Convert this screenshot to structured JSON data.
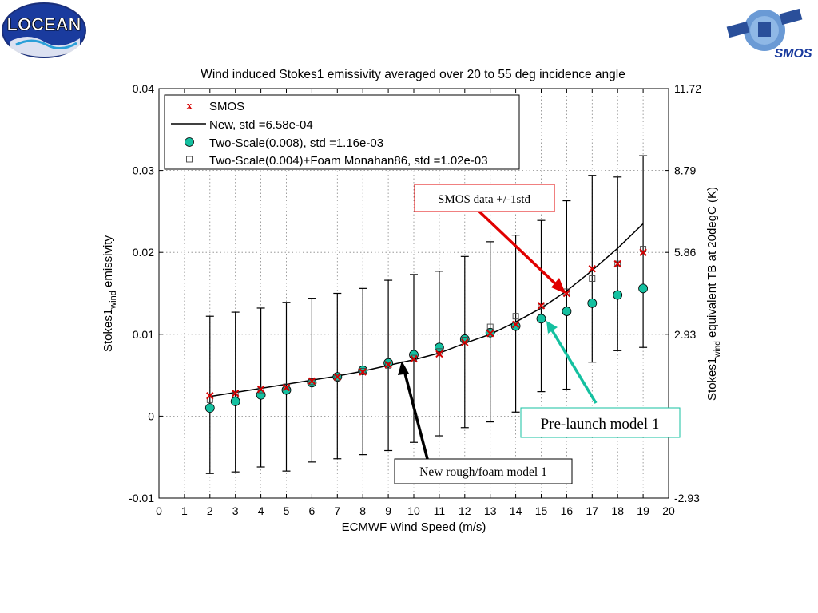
{
  "logos": {
    "left_text": "LOCEAN",
    "right_text": "SMOS"
  },
  "chart_data": {
    "type": "scatter",
    "title": "Wind induced Stokes1 emissivity averaged over 20 to 55 deg incidence angle",
    "xlabel": "ECMWF Wind Speed (m/s)",
    "ylabel": "Stokes1 emissivity",
    "ylabel_sub": "wind",
    "ylabel_base": "Stokes1",
    "ylabel_rest": " emissivity",
    "y2label_base": "Stokes1",
    "y2label_sub": "wind",
    "y2label_rest": " equivalent TB at 20degC (K)",
    "xlim": [
      0,
      20
    ],
    "ylim": [
      -0.01,
      0.04
    ],
    "x_ticks": [
      "0",
      "1",
      "2",
      "3",
      "4",
      "5",
      "6",
      "7",
      "8",
      "9",
      "10",
      "11",
      "12",
      "13",
      "14",
      "15",
      "16",
      "17",
      "18",
      "19",
      "20"
    ],
    "y_ticks": [
      "-0.01",
      "0",
      "0.01",
      "0.02",
      "0.03",
      "0.04"
    ],
    "y2_ticks": [
      "-2.93",
      "0",
      "2.93",
      "5.86",
      "8.79",
      "11.72"
    ],
    "grid": true,
    "legend_position": "top-left",
    "series": [
      {
        "name": "SMOS",
        "marker": "x",
        "color": "#d40000",
        "x": [
          2,
          3,
          4,
          5,
          6,
          7,
          8,
          9,
          10,
          11,
          12,
          13,
          14,
          15,
          16,
          17,
          18,
          19
        ],
        "y": [
          0.0025,
          0.0028,
          0.0033,
          0.0035,
          0.0043,
          0.0048,
          0.0054,
          0.0063,
          0.007,
          0.0076,
          0.009,
          0.0101,
          0.0112,
          0.0135,
          0.015,
          0.018,
          0.0186,
          0.02
        ],
        "err_low": [
          -0.007,
          -0.0068,
          -0.0062,
          -0.0067,
          -0.0056,
          -0.0052,
          -0.0047,
          -0.0042,
          -0.0032,
          -0.0024,
          -0.0014,
          -0.0007,
          0.0005,
          0.003,
          0.0033,
          0.0066,
          0.008,
          0.0084
        ],
        "err_high": [
          0.0122,
          0.0127,
          0.0132,
          0.0139,
          0.0144,
          0.015,
          0.0156,
          0.0166,
          0.0173,
          0.0177,
          0.0195,
          0.0213,
          0.0221,
          0.0239,
          0.0263,
          0.0294,
          0.0292,
          0.0318
        ]
      },
      {
        "name": "New, std =6.58e-04",
        "style": "line",
        "color": "#000000",
        "x": [
          2,
          3,
          4,
          5,
          6,
          7,
          8,
          9,
          10,
          11,
          12,
          13,
          14,
          15,
          16,
          17,
          18,
          19
        ],
        "y": [
          0.0024,
          0.0029,
          0.0034,
          0.0039,
          0.0044,
          0.0049,
          0.0055,
          0.0062,
          0.0069,
          0.0077,
          0.0089,
          0.01,
          0.0115,
          0.0132,
          0.0153,
          0.0178,
          0.0205,
          0.0235
        ]
      },
      {
        "name": "Two-Scale(0.008), std =1.16e-03",
        "marker": "circle",
        "color": "#14c0a0",
        "x": [
          2,
          3,
          4,
          5,
          6,
          7,
          8,
          9,
          10,
          11,
          12,
          13,
          14,
          15,
          16,
          17,
          18,
          19
        ],
        "y": [
          0.001,
          0.0018,
          0.0026,
          0.0032,
          0.0041,
          0.0048,
          0.0056,
          0.0065,
          0.0075,
          0.0084,
          0.0094,
          0.0102,
          0.011,
          0.0119,
          0.0128,
          0.0138,
          0.0148,
          0.0156
        ]
      },
      {
        "name": "Two-Scale(0.004)+Foam Monahan86, std =1.02e-03",
        "marker": "square",
        "color": "#444444",
        "x": [
          2,
          3,
          4,
          5,
          6,
          7,
          8,
          9,
          10,
          11,
          12,
          13,
          14,
          15,
          16,
          17,
          18,
          19
        ],
        "y": [
          0.002,
          0.0027,
          0.0032,
          0.0036,
          0.0042,
          0.0047,
          0.0055,
          0.0062,
          0.0071,
          0.0079,
          0.0093,
          0.0109,
          0.0122,
          0.0135,
          0.0152,
          0.0168,
          0.0186,
          0.0204
        ]
      }
    ],
    "annotations": [
      {
        "text": "SMOS data +/-1std",
        "color": "#e00000"
      },
      {
        "text": "Pre-launch model 1",
        "color": "#14c0a0"
      },
      {
        "text": "New rough/foam model 1",
        "color": "#000000"
      }
    ]
  }
}
